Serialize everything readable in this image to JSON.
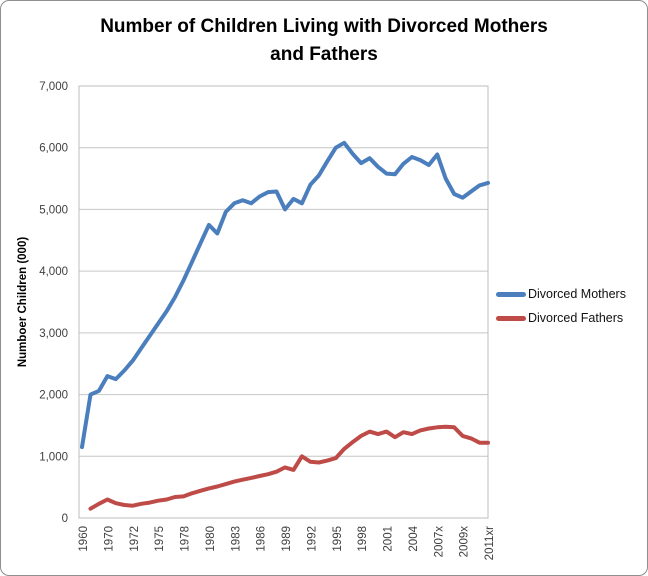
{
  "chart_data": {
    "type": "line",
    "title": "Number of Children Living with Divorced Mothers and Fathers",
    "title_lines": [
      "Number of Children Living with Divorced Mothers",
      "and Fathers"
    ],
    "xlabel": "",
    "ylabel": "Numboer Children (000)",
    "ylim": [
      0,
      7000
    ],
    "ytick_step": 1000,
    "ytick_labels": [
      "0",
      "1,000",
      "2,000",
      "3,000",
      "4,000",
      "5,000",
      "6,000",
      "7,000"
    ],
    "grid": true,
    "legend_position": "right-middle",
    "x_count": 49,
    "xtick_every": 3,
    "xtick_labels": [
      "1960",
      "1970",
      "1972",
      "1975",
      "1978",
      "1980",
      "1983",
      "1986",
      "1989",
      "1992",
      "1995",
      "1998",
      "2001",
      "2004",
      "2007x",
      "2009x",
      "2011xr"
    ],
    "series": [
      {
        "name": "Divorced Mothers",
        "color": "#4A7EBC",
        "values": [
          1150,
          2000,
          2060,
          2300,
          2250,
          2390,
          2550,
          2750,
          2950,
          3150,
          3350,
          3580,
          3850,
          4150,
          4450,
          4750,
          4610,
          4960,
          5100,
          5150,
          5100,
          5210,
          5280,
          5290,
          5000,
          5170,
          5100,
          5400,
          5550,
          5780,
          6000,
          6080,
          5900,
          5750,
          5830,
          5690,
          5580,
          5570,
          5740,
          5850,
          5800,
          5720,
          5890,
          5500,
          5250,
          5190,
          5290,
          5390,
          5430
        ]
      },
      {
        "name": "Divorced Fathers",
        "color": "#BE4B48",
        "values": [
          null,
          150,
          230,
          300,
          240,
          210,
          200,
          230,
          250,
          280,
          300,
          340,
          350,
          400,
          440,
          480,
          510,
          550,
          590,
          620,
          650,
          680,
          710,
          750,
          820,
          780,
          1000,
          910,
          900,
          930,
          970,
          1120,
          1230,
          1330,
          1400,
          1360,
          1400,
          1310,
          1390,
          1360,
          1420,
          1450,
          1470,
          1480,
          1470,
          1330,
          1290,
          1220,
          1220
        ]
      }
    ],
    "colors": {
      "grid": "#C6C6C6",
      "plot_border": "#BCBCBC",
      "tick_text": "#3F3F3F",
      "title_text": "#000000"
    }
  }
}
